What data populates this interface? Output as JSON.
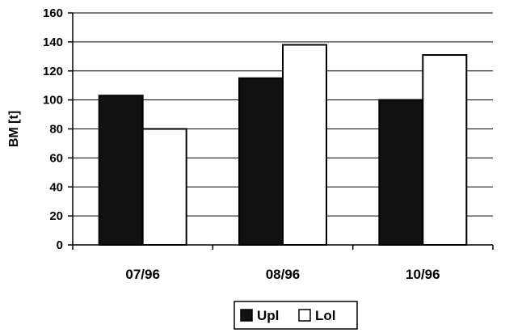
{
  "chart_data": {
    "type": "bar",
    "title": "",
    "xlabel": "",
    "ylabel": "BM [t]",
    "categories": [
      "07/96",
      "08/96",
      "10/96"
    ],
    "series": [
      {
        "name": "Upl",
        "values": [
          103,
          115,
          100
        ],
        "fill": "#111111"
      },
      {
        "name": "Lol",
        "values": [
          80,
          138,
          131
        ],
        "fill": "#ffffff"
      }
    ],
    "ylim": [
      0,
      160
    ],
    "yticks": [
      0,
      20,
      40,
      60,
      80,
      100,
      120,
      140,
      160
    ],
    "grid": true,
    "legend_position": "bottom"
  }
}
